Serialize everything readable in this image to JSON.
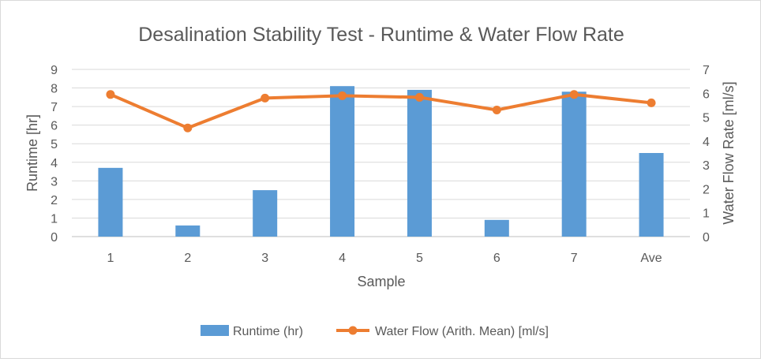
{
  "chart_data": {
    "type": "bar",
    "title": "Desalination Stability Test - Runtime & Water Flow Rate",
    "xlabel": "Sample",
    "ylabel": "Runtime [hr]",
    "y2label": "Water Flow Rate [ml/s]",
    "categories": [
      "1",
      "2",
      "3",
      "4",
      "5",
      "6",
      "7",
      "Ave"
    ],
    "ylim": [
      0,
      9
    ],
    "y2lim": [
      0,
      7
    ],
    "yticks": [
      "0",
      "1",
      "2",
      "3",
      "4",
      "5",
      "6",
      "7",
      "8",
      "9"
    ],
    "y2ticks": [
      "0",
      "1",
      "2",
      "3",
      "4",
      "5",
      "6",
      "7"
    ],
    "grid": true,
    "legend_position": "bottom",
    "series": [
      {
        "name": "Runtime (hr)",
        "type": "bar",
        "axis": "left",
        "color": "#5b9bd5",
        "values": [
          3.7,
          0.6,
          2.5,
          8.1,
          7.9,
          0.9,
          7.8,
          4.5
        ]
      },
      {
        "name": "Water Flow (Arith. Mean) [ml/s]",
        "type": "line",
        "axis": "right",
        "color": "#ed7d31",
        "values": [
          5.95,
          4.55,
          5.8,
          5.9,
          5.83,
          5.3,
          5.95,
          5.6
        ]
      }
    ]
  }
}
